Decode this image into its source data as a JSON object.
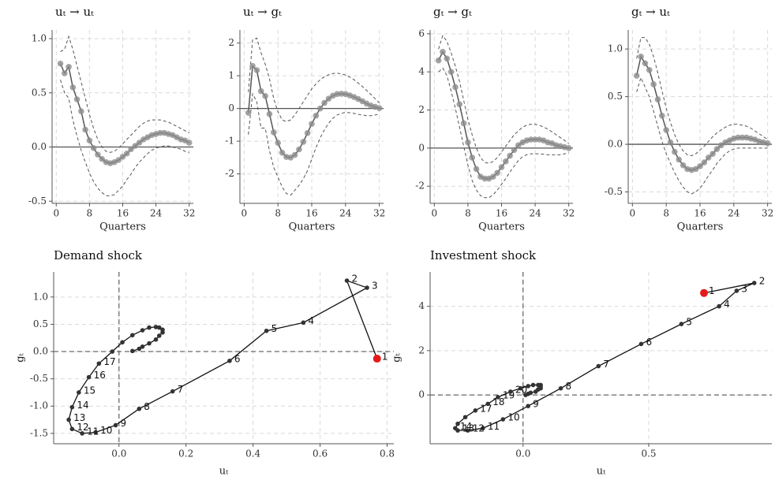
{
  "chart_data": [
    {
      "type": "irf",
      "title": "uₜ → uₜ",
      "xlabel": "Quarters",
      "x": [
        1,
        2,
        3,
        4,
        5,
        6,
        7,
        8,
        9,
        10,
        11,
        12,
        13,
        14,
        15,
        16,
        17,
        18,
        19,
        20,
        21,
        22,
        23,
        24,
        25,
        26,
        27,
        28,
        29,
        30,
        31,
        32
      ],
      "values": [
        0.77,
        0.68,
        0.74,
        0.55,
        0.44,
        0.33,
        0.16,
        0.06,
        -0.01,
        -0.07,
        -0.11,
        -0.14,
        -0.15,
        -0.14,
        -0.12,
        -0.09,
        -0.06,
        -0.02,
        0.01,
        0.04,
        0.07,
        0.09,
        0.11,
        0.12,
        0.13,
        0.13,
        0.12,
        0.11,
        0.09,
        0.07,
        0.06,
        0.04
      ],
      "upper": [
        0.88,
        0.9,
        1.02,
        0.9,
        0.75,
        0.6,
        0.45,
        0.3,
        0.17,
        0.07,
        0.0,
        -0.04,
        -0.05,
        -0.04,
        -0.01,
        0.03,
        0.07,
        0.11,
        0.15,
        0.19,
        0.22,
        0.24,
        0.25,
        0.25,
        0.25,
        0.24,
        0.23,
        0.21,
        0.19,
        0.17,
        0.15,
        0.13
      ],
      "lower": [
        0.62,
        0.5,
        0.45,
        0.25,
        0.1,
        -0.03,
        -0.14,
        -0.24,
        -0.32,
        -0.38,
        -0.42,
        -0.45,
        -0.45,
        -0.44,
        -0.4,
        -0.36,
        -0.3,
        -0.25,
        -0.19,
        -0.14,
        -0.1,
        -0.06,
        -0.03,
        -0.01,
        0.0,
        0.01,
        0.01,
        0.0,
        -0.01,
        -0.02,
        -0.04,
        -0.05
      ],
      "xlim": [
        -1,
        33
      ],
      "xticks": [
        0,
        8,
        16,
        24,
        32
      ],
      "ylim": [
        -0.52,
        1.08
      ],
      "yticks": [
        -0.5,
        {
          "value": 0,
          "label": "0.0"
        },
        0.5,
        {
          "value": 1,
          "label": "1.0"
        }
      ],
      "grid": true,
      "color": "#555555",
      "marker_color": "#8c8c8c"
    },
    {
      "type": "irf",
      "title": "uₜ → gₜ",
      "xlabel": "Quarters",
      "x": [
        1,
        2,
        3,
        4,
        5,
        6,
        7,
        8,
        9,
        10,
        11,
        12,
        13,
        14,
        15,
        16,
        17,
        18,
        19,
        20,
        21,
        22,
        23,
        24,
        25,
        26,
        27,
        28,
        29,
        30,
        31,
        32
      ],
      "values": [
        -0.13,
        1.3,
        1.17,
        0.53,
        0.38,
        -0.17,
        -0.73,
        -1.05,
        -1.35,
        -1.48,
        -1.5,
        -1.42,
        -1.25,
        -1.02,
        -0.75,
        -0.47,
        -0.22,
        0.0,
        0.17,
        0.3,
        0.39,
        0.44,
        0.45,
        0.44,
        0.4,
        0.35,
        0.29,
        0.22,
        0.15,
        0.09,
        0.05,
        0.01
      ],
      "upper": [
        0.5,
        2.1,
        2.15,
        1.7,
        1.35,
        0.9,
        0.3,
        -0.1,
        -0.35,
        -0.4,
        -0.35,
        -0.2,
        0.0,
        0.2,
        0.4,
        0.6,
        0.75,
        0.88,
        0.97,
        1.03,
        1.07,
        1.08,
        1.06,
        1.02,
        0.96,
        0.88,
        0.78,
        0.67,
        0.55,
        0.43,
        0.3,
        0.17
      ],
      "lower": [
        -0.8,
        0.45,
        0.2,
        -0.6,
        -0.6,
        -1.3,
        -1.8,
        -2.1,
        -2.4,
        -2.6,
        -2.65,
        -2.5,
        -2.35,
        -2.15,
        -1.9,
        -1.55,
        -1.2,
        -0.9,
        -0.65,
        -0.45,
        -0.3,
        -0.2,
        -0.15,
        -0.12,
        -0.13,
        -0.15,
        -0.18,
        -0.2,
        -0.22,
        -0.22,
        -0.2,
        -0.17
      ],
      "xlim": [
        -1,
        33
      ],
      "xticks": [
        0,
        8,
        16,
        24,
        32
      ],
      "ylim": [
        -2.9,
        2.4
      ],
      "yticks": [
        -2,
        -1,
        0,
        1,
        2
      ],
      "grid": true,
      "color": "#555555",
      "marker_color": "#8c8c8c"
    },
    {
      "type": "irf",
      "title": "gₜ → gₜ",
      "xlabel": "Quarters",
      "x": [
        1,
        2,
        3,
        4,
        5,
        6,
        7,
        8,
        9,
        10,
        11,
        12,
        13,
        14,
        15,
        16,
        17,
        18,
        19,
        20,
        21,
        22,
        23,
        24,
        25,
        26,
        27,
        28,
        29,
        30,
        31,
        32
      ],
      "values": [
        4.6,
        5.05,
        4.7,
        4.0,
        3.2,
        2.3,
        1.3,
        0.3,
        -0.5,
        -1.1,
        -1.5,
        -1.6,
        -1.6,
        -1.5,
        -1.3,
        -1.0,
        -0.7,
        -0.4,
        -0.1,
        0.15,
        0.3,
        0.4,
        0.45,
        0.45,
        0.45,
        0.4,
        0.3,
        0.25,
        0.15,
        0.1,
        0.05,
        0.0
      ],
      "upper": [
        5.2,
        5.9,
        5.6,
        5.0,
        4.3,
        3.5,
        2.5,
        1.5,
        0.7,
        0.0,
        -0.5,
        -0.75,
        -0.8,
        -0.7,
        -0.5,
        -0.2,
        0.1,
        0.4,
        0.7,
        0.9,
        1.1,
        1.2,
        1.25,
        1.25,
        1.2,
        1.1,
        1.0,
        0.85,
        0.7,
        0.55,
        0.4,
        0.25
      ],
      "lower": [
        4.0,
        4.2,
        3.8,
        3.0,
        2.1,
        1.1,
        0.1,
        -0.9,
        -1.7,
        -2.2,
        -2.5,
        -2.6,
        -2.6,
        -2.45,
        -2.2,
        -1.9,
        -1.6,
        -1.25,
        -0.95,
        -0.65,
        -0.45,
        -0.35,
        -0.3,
        -0.3,
        -0.3,
        -0.32,
        -0.35,
        -0.35,
        -0.35,
        -0.35,
        -0.3,
        -0.25
      ],
      "xlim": [
        -1,
        33
      ],
      "xticks": [
        0,
        8,
        16,
        24,
        32
      ],
      "ylim": [
        -2.9,
        6.2
      ],
      "yticks": [
        -2,
        0,
        2,
        4,
        6
      ],
      "grid": true,
      "color": "#555555",
      "marker_color": "#8c8c8c"
    },
    {
      "type": "irf",
      "title": "gₜ → uₜ",
      "xlabel": "Quarters",
      "x": [
        1,
        2,
        3,
        4,
        5,
        6,
        7,
        8,
        9,
        10,
        11,
        12,
        13,
        14,
        15,
        16,
        17,
        18,
        19,
        20,
        21,
        22,
        23,
        24,
        25,
        26,
        27,
        28,
        29,
        30,
        31,
        32
      ],
      "values": [
        0.72,
        0.92,
        0.85,
        0.78,
        0.63,
        0.47,
        0.3,
        0.15,
        0.02,
        -0.08,
        -0.16,
        -0.22,
        -0.26,
        -0.27,
        -0.26,
        -0.23,
        -0.19,
        -0.14,
        -0.1,
        -0.05,
        -0.01,
        0.02,
        0.04,
        0.06,
        0.07,
        0.07,
        0.07,
        0.06,
        0.05,
        0.03,
        0.02,
        0.01
      ],
      "upper": [
        0.9,
        1.12,
        1.12,
        1.05,
        0.92,
        0.75,
        0.56,
        0.38,
        0.23,
        0.1,
        0.0,
        -0.07,
        -0.11,
        -0.12,
        -0.1,
        -0.06,
        -0.02,
        0.03,
        0.08,
        0.12,
        0.15,
        0.18,
        0.2,
        0.21,
        0.21,
        0.2,
        0.19,
        0.17,
        0.14,
        0.11,
        0.08,
        0.05
      ],
      "lower": [
        0.55,
        0.7,
        0.6,
        0.5,
        0.35,
        0.19,
        0.03,
        -0.1,
        -0.2,
        -0.3,
        -0.38,
        -0.45,
        -0.5,
        -0.52,
        -0.5,
        -0.46,
        -0.4,
        -0.33,
        -0.27,
        -0.2,
        -0.15,
        -0.1,
        -0.07,
        -0.05,
        -0.04,
        -0.04,
        -0.04,
        -0.04,
        -0.04,
        -0.04,
        -0.04,
        -0.04
      ],
      "xlim": [
        -1,
        33
      ],
      "xticks": [
        0,
        8,
        16,
        24,
        32
      ],
      "ylim": [
        -0.62,
        1.2
      ],
      "yticks": [
        -0.5,
        {
          "value": 0,
          "label": "0.0"
        },
        0.5,
        {
          "value": 1,
          "label": "1.0"
        }
      ],
      "grid": true,
      "color": "#555555",
      "marker_color": "#8c8c8c"
    },
    {
      "type": "phase",
      "title": "Demand shock",
      "xlabel": "uₜ",
      "ylabel": "gₜ",
      "x": [
        0.77,
        0.68,
        0.74,
        0.55,
        0.44,
        0.33,
        0.16,
        0.06,
        -0.01,
        -0.07,
        -0.11,
        -0.14,
        -0.15,
        -0.14,
        -0.12,
        -0.09,
        -0.06,
        -0.02,
        0.01,
        0.04,
        0.07,
        0.09,
        0.11,
        0.12,
        0.13,
        0.13,
        0.12,
        0.11,
        0.09,
        0.07,
        0.06,
        0.04
      ],
      "y": [
        -0.13,
        1.3,
        1.17,
        0.53,
        0.38,
        -0.17,
        -0.73,
        -1.05,
        -1.35,
        -1.48,
        -1.5,
        -1.42,
        -1.25,
        -1.02,
        -0.75,
        -0.47,
        -0.22,
        0.0,
        0.17,
        0.3,
        0.39,
        0.44,
        0.45,
        0.44,
        0.4,
        0.35,
        0.29,
        0.22,
        0.15,
        0.09,
        0.05,
        0.01
      ],
      "point_labels": [
        "1",
        "2",
        "3",
        "4",
        "5",
        "6",
        "7",
        "8",
        "9",
        "10",
        "11",
        "12",
        "13",
        "14",
        "15",
        "16",
        "17",
        null,
        null,
        null,
        null,
        null,
        null,
        null,
        null,
        null,
        null,
        null,
        null,
        null,
        null,
        null
      ],
      "xlim": [
        -0.195,
        0.82
      ],
      "xticks": [
        {
          "value": 0,
          "label": "0.0"
        },
        0.2,
        0.4,
        0.6,
        0.8
      ],
      "ylim": [
        -1.69,
        1.46
      ],
      "yticks": [
        -1.5,
        {
          "value": -1,
          "label": "-1.0"
        },
        -0.5,
        {
          "value": 0,
          "label": "0.0"
        },
        0.5,
        {
          "value": 1,
          "label": "1.0"
        }
      ],
      "grid": true,
      "color": "#111111",
      "highlight_color": "#e41a1c"
    },
    {
      "type": "phase",
      "title": "Investment shock",
      "xlabel": "uₜ",
      "ylabel": "gₜ",
      "x": [
        0.72,
        0.92,
        0.85,
        0.78,
        0.63,
        0.47,
        0.3,
        0.15,
        0.02,
        -0.08,
        -0.16,
        -0.22,
        -0.26,
        -0.27,
        -0.26,
        -0.23,
        -0.19,
        -0.14,
        -0.1,
        -0.05,
        -0.01,
        0.02,
        0.04,
        0.06,
        0.07,
        0.07,
        0.07,
        0.06,
        0.05,
        0.03,
        0.02,
        0.01
      ],
      "y": [
        4.6,
        5.05,
        4.7,
        4.0,
        3.2,
        2.3,
        1.3,
        0.3,
        -0.5,
        -1.1,
        -1.5,
        -1.6,
        -1.6,
        -1.5,
        -1.3,
        -1.0,
        -0.7,
        -0.4,
        -0.1,
        0.15,
        0.3,
        0.4,
        0.45,
        0.45,
        0.45,
        0.4,
        0.3,
        0.25,
        0.15,
        0.1,
        0.05,
        0.0
      ],
      "point_labels": [
        "1",
        "2",
        "3",
        "4",
        "5",
        "6",
        "7",
        "8",
        "9",
        "10",
        "11",
        "12",
        "13",
        "14",
        null,
        null,
        "17",
        "18",
        "19",
        "20",
        null,
        null,
        null,
        null,
        null,
        null,
        null,
        null,
        null,
        null,
        null,
        null
      ],
      "xlim": [
        -0.37,
        0.99
      ],
      "xticks": [
        {
          "value": 0,
          "label": "0.0"
        },
        0.5
      ],
      "ylim": [
        -2.2,
        5.55
      ],
      "yticks": [
        0,
        2,
        4
      ],
      "grid": true,
      "color": "#111111",
      "highlight_color": "#e41a1c"
    }
  ]
}
